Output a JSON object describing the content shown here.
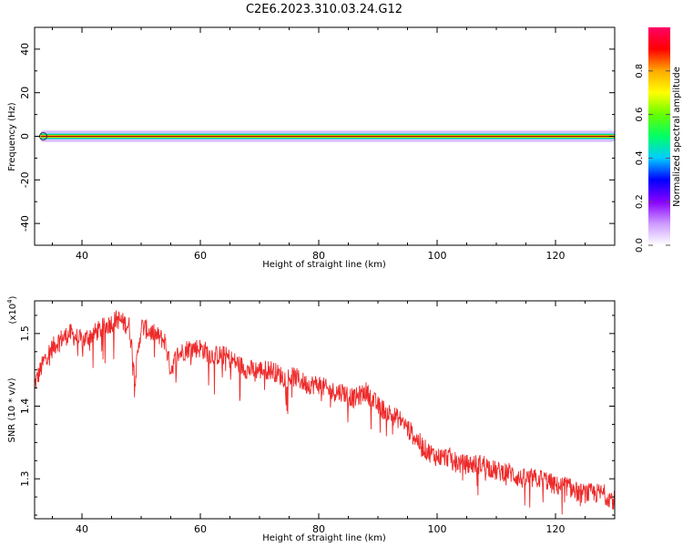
{
  "figure": {
    "title": "C2E6.2023.310.03.24.G12"
  },
  "colors": {
    "snr_line": "#ee2a2a",
    "center_line": "#8b0000",
    "axis": "#000000"
  },
  "chart_data": [
    {
      "type": "heatmap",
      "xlabel": "Height of straight line (km)",
      "ylabel": "Frequency (Hz)",
      "xlim": [
        32,
        130
      ],
      "ylim": [
        -50,
        50
      ],
      "xticks": [
        40,
        60,
        80,
        100,
        120
      ],
      "yticks": [
        -40,
        -20,
        0,
        20,
        40
      ],
      "colorbar": {
        "label": "Normalized spectral amplitude",
        "range": [
          0.0,
          1.0
        ],
        "ticks": [
          "0.0",
          "0.2",
          "0.4",
          "0.6",
          "0.8"
        ],
        "tick_values": [
          0.0,
          0.2,
          0.4,
          0.6,
          0.8
        ],
        "colormap": [
          "#ffffff",
          "#cc99ff",
          "#8800ff",
          "#0000ff",
          "#00ccff",
          "#00ff66",
          "#66ff00",
          "#ffff00",
          "#ffaa00",
          "#ff0000",
          "#ff0066"
        ]
      },
      "band": {
        "center_frequency": 0,
        "core_halfwidth": 1.2,
        "halo_halfwidth": 2.6
      }
    },
    {
      "type": "line",
      "xlabel": "Height of straight line (km)",
      "ylabel": "SNR (10 * v/v)",
      "scale_label": "(x10",
      "scale_exp": "4",
      "scale_close": ")",
      "xlim": [
        32,
        130
      ],
      "ylim": [
        1.245,
        1.545
      ],
      "xticks": [
        40,
        60,
        80,
        100,
        120
      ],
      "yticks": [
        "1.3",
        "1.4",
        "1.5"
      ],
      "ytick_values": [
        1.3,
        1.4,
        1.5
      ],
      "series": [
        {
          "x": [
            32,
            34,
            36,
            38,
            40,
            42,
            44,
            46,
            48,
            49,
            50,
            52,
            54,
            55,
            56,
            58,
            60,
            62,
            64,
            66,
            68,
            70,
            72,
            74,
            76,
            78,
            80,
            82,
            84,
            86,
            88,
            90,
            92,
            94,
            96,
            98,
            100,
            102,
            104,
            106,
            108,
            110,
            112,
            114,
            116,
            118,
            120,
            122,
            124,
            126,
            128,
            130
          ],
          "values": [
            1.43,
            1.47,
            1.49,
            1.5,
            1.49,
            1.5,
            1.51,
            1.52,
            1.51,
            1.44,
            1.51,
            1.5,
            1.49,
            1.45,
            1.47,
            1.48,
            1.48,
            1.47,
            1.47,
            1.46,
            1.45,
            1.45,
            1.45,
            1.44,
            1.44,
            1.43,
            1.43,
            1.42,
            1.42,
            1.41,
            1.42,
            1.4,
            1.39,
            1.38,
            1.36,
            1.34,
            1.33,
            1.33,
            1.32,
            1.32,
            1.32,
            1.31,
            1.31,
            1.3,
            1.3,
            1.3,
            1.29,
            1.29,
            1.28,
            1.28,
            1.28,
            1.27
          ]
        }
      ]
    }
  ]
}
